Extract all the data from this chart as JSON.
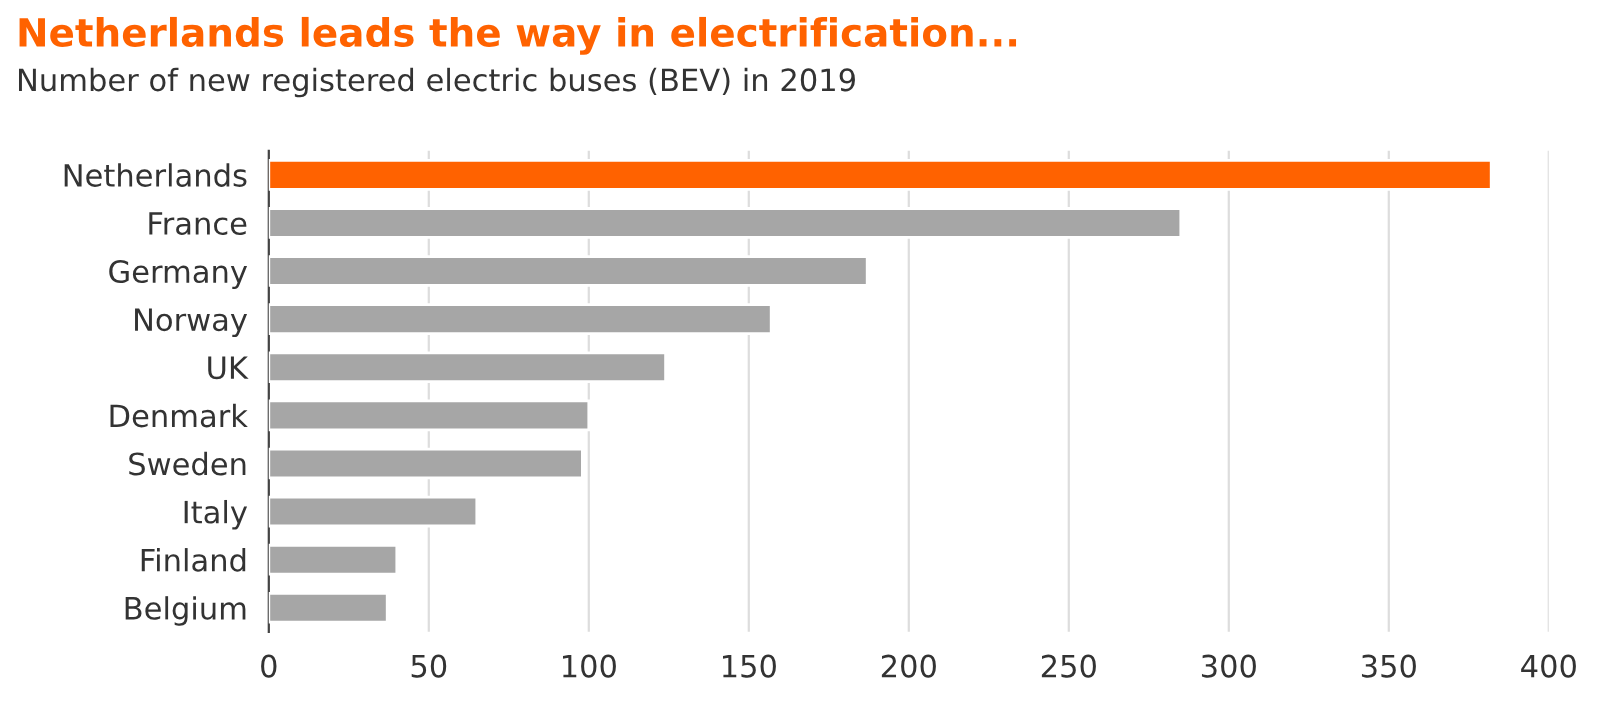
{
  "chart_data": {
    "type": "bar",
    "orientation": "horizontal",
    "title": "Netherlands leads the way in electrification...",
    "subtitle": "Number of new registered electric buses (BEV) in 2019",
    "categories": [
      "Netherlands",
      "France",
      "Germany",
      "Norway",
      "UK",
      "Denmark",
      "Sweden",
      "Italy",
      "Finland",
      "Belgium"
    ],
    "values": [
      382,
      285,
      187,
      157,
      124,
      100,
      98,
      65,
      40,
      37
    ],
    "colors": [
      "#ff6200",
      "#a6a6a6",
      "#a6a6a6",
      "#a6a6a6",
      "#a6a6a6",
      "#a6a6a6",
      "#a6a6a6",
      "#a6a6a6",
      "#a6a6a6",
      "#a6a6a6"
    ],
    "xlim": [
      0,
      400
    ],
    "xticks": [
      0,
      50,
      100,
      150,
      200,
      250,
      300,
      350,
      400
    ],
    "grid": "x"
  }
}
